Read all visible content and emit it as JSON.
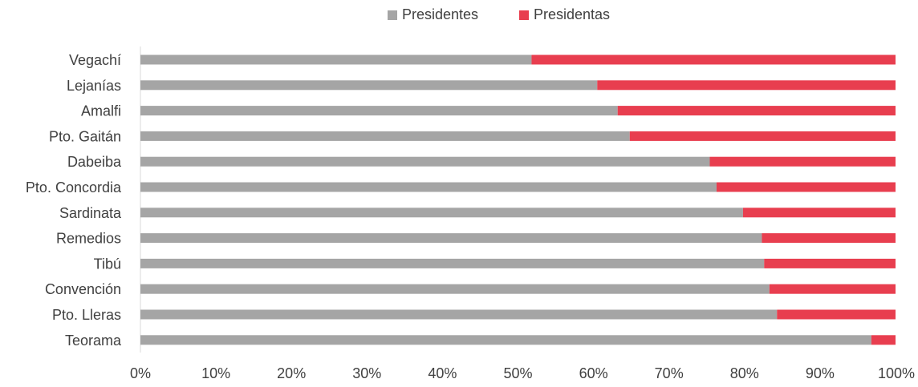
{
  "chart_data": {
    "type": "bar",
    "orientation": "horizontal",
    "stacking": "percent",
    "categories": [
      "Vegachí",
      "Lejanías",
      "Amalfi",
      "Pto. Gaitán",
      "Dabeiba",
      "Pto. Concordia",
      "Sardinata",
      "Remedios",
      "Tibú",
      "Convención",
      "Pto. Lleras",
      "Teorama"
    ],
    "series": [
      {
        "name": "Presidentes",
        "color": "#a5a5a5",
        "values": [
          51.8,
          60.5,
          63.2,
          64.8,
          75.4,
          76.3,
          79.8,
          82.3,
          82.6,
          83.3,
          84.3,
          96.8
        ]
      },
      {
        "name": "Presidentas",
        "color": "#e83e4f",
        "values": [
          48.2,
          39.5,
          36.8,
          35.2,
          24.6,
          23.7,
          20.2,
          17.7,
          17.4,
          16.7,
          15.7,
          3.2
        ]
      }
    ],
    "x_ticks": [
      "0%",
      "10%",
      "20%",
      "30%",
      "40%",
      "50%",
      "60%",
      "70%",
      "80%",
      "90%",
      "100%"
    ],
    "xlim": [
      0,
      100
    ],
    "title": "",
    "xlabel": "",
    "ylabel": "",
    "legend_position": "top-center",
    "grid": false
  }
}
